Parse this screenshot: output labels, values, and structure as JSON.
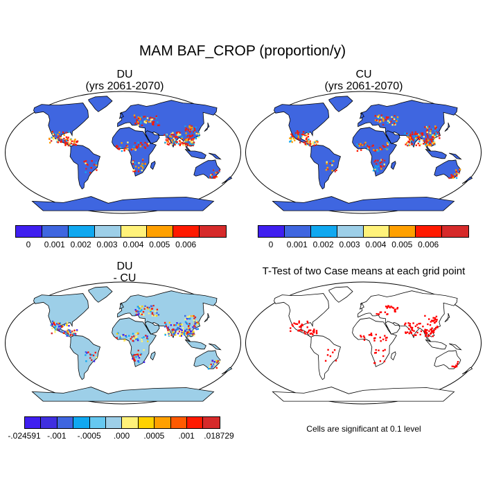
{
  "title": "MAM BAF_CROP (proportion/y)",
  "panels": [
    {
      "id": "du",
      "title_line1": "DU",
      "title_line2": "(yrs 2061-2070)"
    },
    {
      "id": "cu",
      "title_line1": "CU",
      "title_line2": "(yrs 2061-2070)"
    },
    {
      "id": "diff",
      "title_line1": "DU",
      "title_line2": "- CU"
    },
    {
      "id": "ttest",
      "title_line1": "T-Test of two Case means at each grid point",
      "title_line2": ""
    }
  ],
  "colorbar_main": {
    "colors": [
      "#3f1ff0",
      "#3f66e0",
      "#10a8f0",
      "#9dcfe8",
      "#fff27a",
      "#ffa000",
      "#ff1a00",
      "#d62a2a"
    ],
    "labels": [
      "0",
      "0.001",
      "0.002",
      "0.003",
      "0.004",
      "0.005",
      "0.006"
    ]
  },
  "colorbar_diff": {
    "colors": [
      "#3f1ff0",
      "#3f2fe0",
      "#3f66e0",
      "#10a8f0",
      "#66c8f0",
      "#9dcfe8",
      "#fff27a",
      "#ffd200",
      "#ffa000",
      "#ff5a00",
      "#ff1a00",
      "#d62a2a"
    ],
    "labels": [
      "-.024591",
      "-.001",
      "-.0005",
      ".000",
      ".0005",
      ".001",
      ".018729"
    ]
  },
  "note": "Cells are significant at 0.1 level",
  "colors": {
    "land_main": "#3f66e0",
    "land_diff": "#9dcfe8",
    "significant": "#ff0000",
    "outline": "#000000"
  }
}
